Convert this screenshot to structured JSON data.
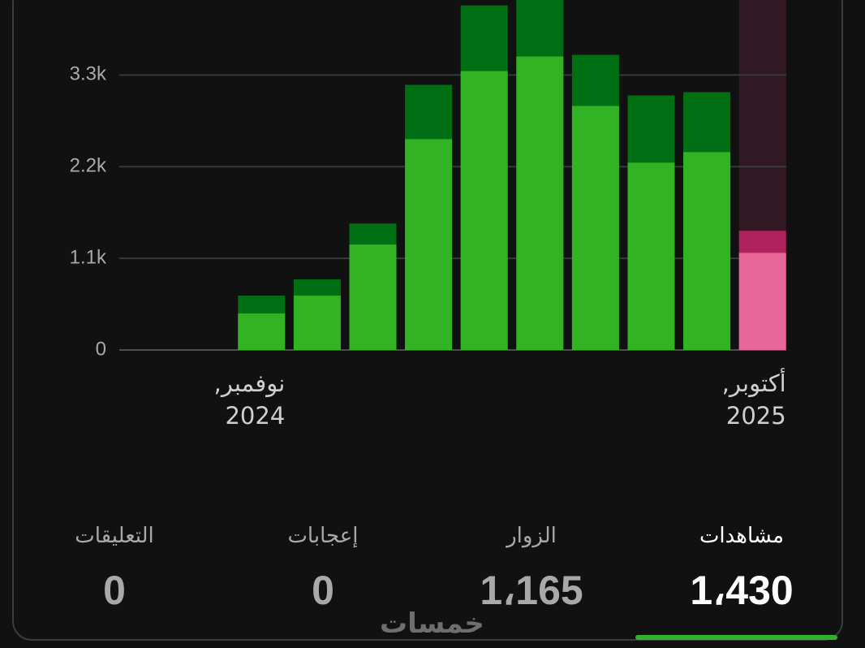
{
  "chart_data": {
    "type": "bar",
    "mode": "overlay",
    "categories": [
      "نوفمبر, 2024",
      null,
      null,
      null,
      null,
      null,
      null,
      null,
      null,
      "أكتوبر, 2025"
    ],
    "series": [
      {
        "name": "مشاهدات",
        "color": "#006f14",
        "highlight_color": "#b0225d",
        "values": [
          652,
          847,
          1518,
          3182,
          4135,
          4250,
          3542,
          3055,
          3094,
          1430
        ]
      },
      {
        "name": "الزوار",
        "color": "#32b324",
        "highlight_color": "#e8689a",
        "values": [
          438,
          652,
          1265,
          2530,
          3347,
          3522,
          2929,
          2248,
          2374,
          1165
        ]
      }
    ],
    "highlight": 9,
    "ylim": [
      0,
      4200
    ],
    "yticks": [
      0,
      {
        "value": 1100,
        "label": "1.1k"
      },
      {
        "value": 2200,
        "label": "2.2k"
      },
      {
        "value": 3300,
        "label": "3.3k"
      }
    ],
    "grid": true
  },
  "stats": [
    {
      "label": "مشاهدات",
      "value": "1،430",
      "selected": true
    },
    {
      "label": "الزوار",
      "value": "1،165",
      "selected": false
    },
    {
      "label": "إعجابات",
      "value": "0",
      "selected": false
    },
    {
      "label": "التعليقات",
      "value": "0",
      "selected": false
    }
  ],
  "watermark": "خمسات"
}
